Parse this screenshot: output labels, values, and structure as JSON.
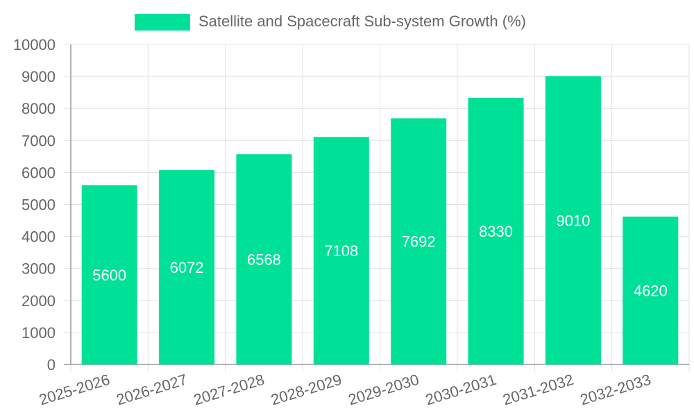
{
  "chart_data": {
    "type": "bar",
    "categories": [
      "2025-2026",
      "2026-2027",
      "2027-2028",
      "2028-2029",
      "2029-2030",
      "2030-2031",
      "2031-2032",
      "2032-2033"
    ],
    "series": [
      {
        "name": "Satellite and Spacecraft Sub-system Growth (%)",
        "values": [
          5600,
          6072,
          6568,
          7108,
          7692,
          8330,
          9010,
          4620
        ]
      }
    ],
    "ylim": [
      0,
      10000
    ],
    "yticks": [
      0,
      1000,
      2000,
      3000,
      4000,
      5000,
      6000,
      7000,
      8000,
      9000,
      10000
    ],
    "grid": true,
    "legend_position": "top",
    "data_labels": true,
    "colors": {
      "bar": "#00e096",
      "grid": "#e0e0e0",
      "axis": "#999999",
      "tick_text": "#666666",
      "data_label": "#ffffff"
    }
  }
}
